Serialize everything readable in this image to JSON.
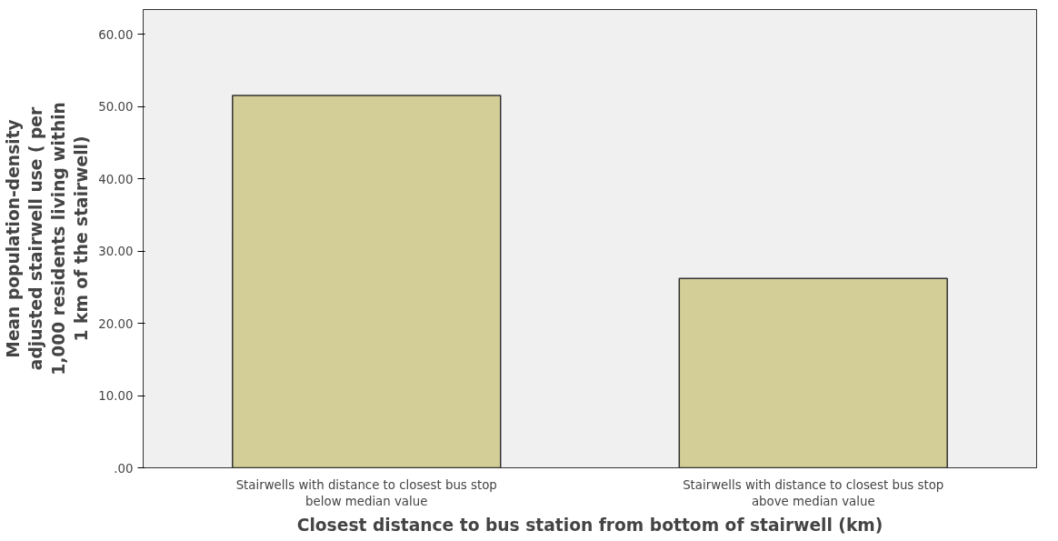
{
  "chart_data": {
    "type": "bar",
    "xlabel": "Closest distance to bus station from bottom of stairwell (km)",
    "ylabel": "Mean population-density adjusted stairwell use ( per 1,000 residents living within 1 km of the stairwell)",
    "categories": [
      "Stairwells with distance to closest bus stop below median value",
      "Stairwells with distance to closest bus stop above median value"
    ],
    "values": [
      51.5,
      26.2
    ],
    "color": "#d3ce97",
    "ylim": [
      0,
      63.4
    ],
    "yticks": [
      {
        "value": 0,
        "label": ".00"
      },
      {
        "value": 10,
        "label": "10.00"
      },
      {
        "value": 20,
        "label": "20.00"
      },
      {
        "value": 30,
        "label": "30.00"
      },
      {
        "value": 40,
        "label": "40.00"
      },
      {
        "value": 50,
        "label": "50.00"
      },
      {
        "value": 60,
        "label": "60.00"
      }
    ],
    "grid": false
  }
}
